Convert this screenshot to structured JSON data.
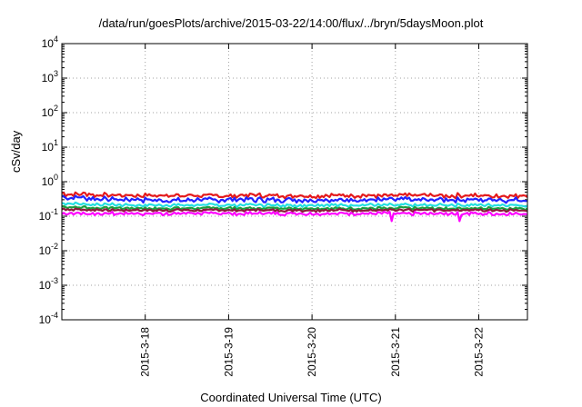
{
  "title": "/data/run/goesPlots/archive/2015-03-22/14:00/flux/../bryn/5daysMoon.plot",
  "chart_data": {
    "type": "line",
    "title": "/data/run/goesPlots/archive/2015-03-22/14:00/flux/../bryn/5daysMoon.plot",
    "xlabel": "Coordinated Universal Time (UTC)",
    "ylabel": "cSv/day",
    "yscale": "log",
    "ylim": [
      0.0001,
      10000
    ],
    "xlim": [
      "2015-03-17 00:00",
      "2015-03-22 14:00"
    ],
    "grid": true,
    "legend": "none",
    "y_ticks": [
      {
        "base": "10",
        "exp": "4"
      },
      {
        "base": "10",
        "exp": "3"
      },
      {
        "base": "10",
        "exp": "2"
      },
      {
        "base": "10",
        "exp": "1"
      },
      {
        "base": "10",
        "exp": "0"
      },
      {
        "base": "10",
        "exp": "-1"
      },
      {
        "base": "10",
        "exp": "-2"
      },
      {
        "base": "10",
        "exp": "-3"
      },
      {
        "base": "10",
        "exp": "-4"
      }
    ],
    "x_ticks": [
      "2015-3-18",
      "2015-3-19",
      "2015-3-20",
      "2015-3-21",
      "2015-3-22"
    ],
    "series": [
      {
        "color": "#e41a1c",
        "level": 0.4,
        "start": 0.45,
        "noise": 0.13,
        "mean_y": 0.4
      },
      {
        "color": "#2222ff",
        "level": 0.3,
        "start": 0.36,
        "noise": 0.14,
        "mean_y": 0.3
      },
      {
        "color": "#22e0e0",
        "level": 0.21,
        "start": 0.24,
        "noise": 0.09,
        "mean_y": 0.21
      },
      {
        "color": "#1b9e3e",
        "level": 0.17,
        "start": 0.19,
        "noise": 0.08,
        "mean_y": 0.17
      },
      {
        "color": "#8b1a3a",
        "level": 0.15,
        "start": 0.16,
        "noise": 0.08,
        "mean_y": 0.15
      },
      {
        "color": "#ff00ff",
        "level": 0.12,
        "start": 0.12,
        "noise": 0.1,
        "mean_y": 0.12
      }
    ]
  }
}
